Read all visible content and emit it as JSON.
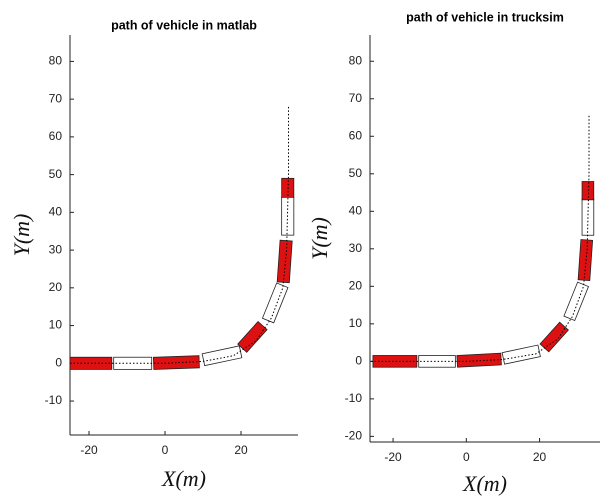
{
  "chart_data": [
    {
      "type": "vehicle-path",
      "title": "path of vehicle in matlab",
      "xlabel": "X(m)",
      "ylabel": "Y(m)",
      "xlim": [
        -25,
        35
      ],
      "ylim": [
        -19,
        87
      ],
      "xticks": [
        -20,
        0,
        20
      ],
      "yticks": [
        -10,
        0,
        10,
        20,
        30,
        40,
        50,
        60,
        70,
        80
      ],
      "path": {
        "x": [
          -25,
          0,
          10,
          18,
          24,
          28,
          31,
          32,
          32.5,
          32.5
        ],
        "y": [
          0,
          0,
          0.5,
          2,
          6,
          12,
          20,
          30,
          50,
          68
        ],
        "color": "#000000"
      },
      "box_width": 3.2,
      "boxes": [
        {
          "x": -19.5,
          "y": 0,
          "heading": 0,
          "length": 11,
          "color": "#dd1111"
        },
        {
          "x": -8.5,
          "y": 0,
          "heading": 0,
          "length": 10,
          "color": "#ffffff"
        },
        {
          "x": 3,
          "y": 0.2,
          "heading": 2,
          "length": 12,
          "color": "#dd1111"
        },
        {
          "x": 15,
          "y": 2,
          "heading": 12,
          "length": 10,
          "color": "#ffffff"
        },
        {
          "x": 23,
          "y": 7,
          "heading": 48,
          "length": 8,
          "color": "#dd1111"
        },
        {
          "x": 29,
          "y": 16,
          "heading": 68,
          "length": 10,
          "color": "#ffffff"
        },
        {
          "x": 31.5,
          "y": 27,
          "heading": 86,
          "length": 11,
          "color": "#dd1111"
        },
        {
          "x": 32.3,
          "y": 39,
          "heading": 90,
          "length": 10,
          "color": "#ffffff"
        },
        {
          "x": 32.3,
          "y": 46.5,
          "heading": 90,
          "length": 5,
          "color": "#dd1111"
        }
      ]
    },
    {
      "type": "vehicle-path",
      "title": "path of vehicle in trucksim",
      "xlabel": "X(m)",
      "ylabel": "Y(m)",
      "xlim": [
        -26.3,
        36.5
      ],
      "ylim": [
        -21.5,
        87
      ],
      "xticks": [
        -20,
        0,
        20
      ],
      "yticks": [
        -20,
        -10,
        0,
        10,
        20,
        30,
        40,
        50,
        60,
        70,
        80
      ],
      "path": {
        "x": [
          -26,
          0,
          10,
          19,
          25,
          29,
          32,
          33,
          33.5,
          33.5
        ],
        "y": [
          0,
          0,
          0.5,
          2,
          6,
          12,
          20,
          30,
          50,
          66
        ],
        "color": "#000000"
      },
      "box_width": 3.2,
      "boxes": [
        {
          "x": -19.5,
          "y": 0,
          "heading": 0,
          "length": 12,
          "color": "#dd1111"
        },
        {
          "x": -8,
          "y": 0,
          "heading": 0,
          "length": 10,
          "color": "#ffffff"
        },
        {
          "x": 3.5,
          "y": 0.3,
          "heading": 3,
          "length": 12,
          "color": "#dd1111"
        },
        {
          "x": 15,
          "y": 1.8,
          "heading": 12,
          "length": 10,
          "color": "#ffffff"
        },
        {
          "x": 24,
          "y": 6.5,
          "heading": 48,
          "length": 8,
          "color": "#dd1111"
        },
        {
          "x": 30,
          "y": 16,
          "heading": 68,
          "length": 10,
          "color": "#ffffff"
        },
        {
          "x": 32.5,
          "y": 27,
          "heading": 86,
          "length": 11,
          "color": "#dd1111"
        },
        {
          "x": 33.2,
          "y": 38.5,
          "heading": 90,
          "length": 10,
          "color": "#ffffff"
        },
        {
          "x": 33.2,
          "y": 45.5,
          "heading": 90,
          "length": 5,
          "color": "#dd1111"
        }
      ]
    }
  ]
}
